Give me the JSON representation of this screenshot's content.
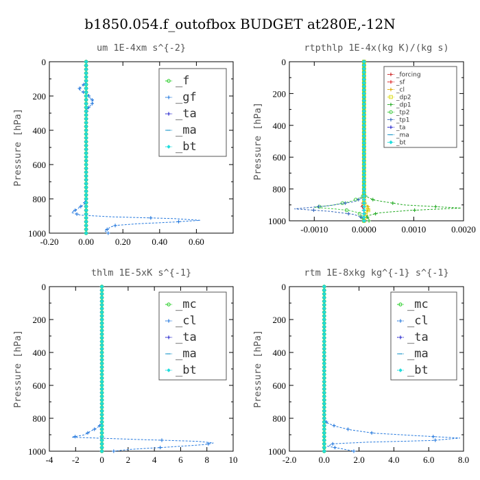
{
  "figure": {
    "title": "b1850.054.f_outofbox  BUDGET at280E,-12N"
  },
  "chart_data": [
    {
      "type": "line",
      "title": "um   1E-4xm  s^{-2}",
      "ylabel": "Pressure [hPa]",
      "xlim": [
        -0.2,
        0.8
      ],
      "ylim": [
        1000,
        0
      ],
      "xticks": [
        -0.2,
        0.0,
        0.2,
        0.4,
        0.6
      ],
      "xtick_labels": [
        "-0.20",
        "0.00",
        "0.20",
        "0.40",
        "0.60"
      ],
      "yticks": [
        0,
        200,
        400,
        600,
        800,
        1000
      ],
      "ytick_labels": [
        "0",
        "200",
        "400",
        "600",
        "800",
        "1000"
      ],
      "legend_position": "top-right",
      "series": [
        {
          "name": "_f",
          "color": "#22cc22",
          "marker": "circle",
          "profile": [
            [
              0,
              0
            ],
            [
              900,
              0
            ],
            [
              1000,
              0
            ]
          ]
        },
        {
          "name": "_gf",
          "color": "#2277dd",
          "marker": "cross",
          "profile": [
            [
              0,
              0
            ],
            [
              120,
              0
            ],
            [
              140,
              -0.02
            ],
            [
              160,
              -0.04
            ],
            [
              175,
              -0.02
            ],
            [
              190,
              0.01
            ],
            [
              210,
              0.02
            ],
            [
              230,
              0.04
            ],
            [
              250,
              0.03
            ],
            [
              270,
              0.01
            ],
            [
              300,
              0
            ],
            [
              800,
              0
            ],
            [
              830,
              -0.01
            ],
            [
              860,
              -0.05
            ],
            [
              880,
              -0.08
            ],
            [
              895,
              -0.03
            ],
            [
              905,
              0.15
            ],
            [
              915,
              0.48
            ],
            [
              925,
              0.62
            ],
            [
              935,
              0.48
            ],
            [
              945,
              0.28
            ],
            [
              955,
              0.16
            ],
            [
              965,
              0.13
            ],
            [
              975,
              0.12
            ],
            [
              985,
              0.1
            ],
            [
              1000,
              0.12
            ]
          ]
        },
        {
          "name": "_ta",
          "color": "#2222cc",
          "marker": "cross",
          "profile": [
            [
              0,
              0
            ],
            [
              1000,
              0
            ]
          ]
        },
        {
          "name": "_ma",
          "color": "#2299cc",
          "marker": "dash",
          "profile": [
            [
              0,
              0
            ],
            [
              1000,
              0
            ]
          ]
        },
        {
          "name": "_bt",
          "color": "#22dddd",
          "marker": "diamond",
          "profile": [
            [
              0,
              0
            ],
            [
              1000,
              0
            ]
          ]
        }
      ]
    },
    {
      "type": "line",
      "title": "rtpthlp  1E-4x(kg K)/(kg s)",
      "ylabel": "Pressure [hPa]",
      "xlim": [
        -0.0015,
        0.002
      ],
      "ylim": [
        1000,
        0
      ],
      "xticks": [
        -0.001,
        0.0,
        0.001,
        0.002
      ],
      "xtick_labels": [
        "-0.0010",
        "0.0000",
        "0.0010",
        "0.0020"
      ],
      "yticks": [
        0,
        200,
        400,
        600,
        800,
        1000
      ],
      "ytick_labels": [
        "0",
        "200",
        "400",
        "600",
        "800",
        "1000"
      ],
      "legend_position": "top-right",
      "series": [
        {
          "name": "_forcing",
          "color": "#cc2222",
          "marker": "cross",
          "profile": [
            [
              0,
              0
            ],
            [
              880,
              0
            ],
            [
              900,
              -5e-05
            ],
            [
              920,
              -2e-05
            ],
            [
              940,
              0
            ],
            [
              1000,
              0
            ]
          ]
        },
        {
          "name": "_sf",
          "color": "#dd2222",
          "marker": "cross",
          "profile": [
            [
              0,
              0
            ],
            [
              1000,
              0
            ]
          ]
        },
        {
          "name": "_cl",
          "color": "#ddaa00",
          "marker": "cross",
          "profile": [
            [
              0,
              0
            ],
            [
              880,
              0
            ],
            [
              910,
              8e-05
            ],
            [
              925,
              0.0001
            ],
            [
              940,
              6e-05
            ],
            [
              960,
              2e-05
            ],
            [
              1000,
              0
            ]
          ]
        },
        {
          "name": "_dp2",
          "color": "#dddd22",
          "marker": "square",
          "profile": [
            [
              0,
              0
            ],
            [
              900,
              0
            ],
            [
              920,
              5e-05
            ],
            [
              935,
              9e-05
            ],
            [
              950,
              4e-05
            ],
            [
              1000,
              0
            ]
          ]
        },
        {
          "name": "_dp1",
          "color": "#22aa22",
          "marker": "cross",
          "profile": [
            [
              0,
              0
            ],
            [
              840,
              0
            ],
            [
              870,
              0.0002
            ],
            [
              900,
              0.0008
            ],
            [
              920,
              0.00195
            ],
            [
              935,
              0.0009
            ],
            [
              950,
              0.0003
            ],
            [
              970,
              5e-05
            ],
            [
              990,
              0.0001
            ],
            [
              1000,
              0.0001
            ]
          ]
        },
        {
          "name": "_tp2",
          "color": "#44cc44",
          "marker": "circle",
          "profile": [
            [
              0,
              0
            ],
            [
              840,
              0
            ],
            [
              860,
              -0.0001
            ],
            [
              880,
              -0.0003
            ],
            [
              900,
              -0.0006
            ],
            [
              915,
              -0.001
            ],
            [
              925,
              -0.0006
            ],
            [
              935,
              -0.0003
            ],
            [
              950,
              -0.0001
            ],
            [
              1000,
              0
            ]
          ]
        },
        {
          "name": "_tp1",
          "color": "#3366bb",
          "marker": "cross",
          "profile": [
            [
              0,
              0
            ],
            [
              850,
              0
            ],
            [
              880,
              -0.0002
            ],
            [
              905,
              -0.0007
            ],
            [
              925,
              -0.0014
            ],
            [
              940,
              -0.0007
            ],
            [
              960,
              -0.0002
            ],
            [
              985,
              0
            ],
            [
              1000,
              0
            ]
          ]
        },
        {
          "name": "_ta",
          "color": "#2222cc",
          "marker": "cross",
          "profile": [
            [
              0,
              0
            ],
            [
              1000,
              0
            ]
          ]
        },
        {
          "name": "_ma",
          "color": "#2299cc",
          "marker": "dash",
          "profile": [
            [
              0,
              0
            ],
            [
              1000,
              0
            ]
          ]
        },
        {
          "name": "_bt",
          "color": "#22dddd",
          "marker": "diamond",
          "profile": [
            [
              0,
              0
            ],
            [
              1000,
              0
            ]
          ]
        }
      ]
    },
    {
      "type": "line",
      "title": "thlm   1E-5xK  s^{-1}",
      "ylabel": "Pressure [hPa]",
      "xlim": [
        -4,
        10
      ],
      "ylim": [
        1000,
        0
      ],
      "xticks": [
        -4,
        -2,
        0,
        2,
        4,
        6,
        8,
        10
      ],
      "xtick_labels": [
        "-4",
        "-2",
        "0",
        "2",
        "4",
        "6",
        "8",
        "10"
      ],
      "yticks": [
        0,
        200,
        400,
        600,
        800,
        1000
      ],
      "ytick_labels": [
        "0",
        "200",
        "400",
        "600",
        "800",
        "1000"
      ],
      "legend_position": "top-right",
      "series": [
        {
          "name": "_mc",
          "color": "#22cc22",
          "marker": "circle",
          "profile": [
            [
              0,
              0
            ],
            [
              1000,
              0
            ]
          ]
        },
        {
          "name": "_cl",
          "color": "#2277dd",
          "marker": "cross",
          "profile": [
            [
              0,
              0
            ],
            [
              820,
              0
            ],
            [
              840,
              -0.1
            ],
            [
              860,
              -0.4
            ],
            [
              880,
              -0.9
            ],
            [
              900,
              -1.3
            ],
            [
              915,
              -2.3
            ],
            [
              930,
              3.2
            ],
            [
              940,
              7.3
            ],
            [
              950,
              8.5
            ],
            [
              960,
              7.8
            ],
            [
              970,
              6.0
            ],
            [
              980,
              4.0
            ],
            [
              990,
              2.0
            ],
            [
              1000,
              0.9
            ]
          ]
        },
        {
          "name": "_ta",
          "color": "#2222cc",
          "marker": "cross",
          "profile": [
            [
              0,
              0
            ],
            [
              1000,
              0
            ]
          ]
        },
        {
          "name": "_ma",
          "color": "#2299cc",
          "marker": "dash",
          "profile": [
            [
              0,
              0
            ],
            [
              1000,
              0
            ]
          ]
        },
        {
          "name": "_bt",
          "color": "#22dddd",
          "marker": "diamond",
          "profile": [
            [
              0,
              0
            ],
            [
              1000,
              0
            ]
          ]
        }
      ]
    },
    {
      "type": "line",
      "title": "rtm   1E-8xkg  kg^{-1}  s^{-1}",
      "ylabel": "Pressure [hPa]",
      "xlim": [
        -2,
        8
      ],
      "ylim": [
        1000,
        0
      ],
      "xticks": [
        -2,
        0,
        2,
        4,
        6,
        8
      ],
      "xtick_labels": [
        "-2.0",
        "0.0",
        "2.0",
        "4.0",
        "6.0",
        "8.0"
      ],
      "yticks": [
        0,
        200,
        400,
        600,
        800,
        1000
      ],
      "ytick_labels": [
        "0",
        "200",
        "400",
        "600",
        "800",
        "1000"
      ],
      "legend_position": "top-right",
      "series": [
        {
          "name": "_mc",
          "color": "#22cc22",
          "marker": "circle",
          "profile": [
            [
              0,
              0
            ],
            [
              1000,
              0
            ]
          ]
        },
        {
          "name": "_cl",
          "color": "#2277dd",
          "marker": "cross",
          "profile": [
            [
              0,
              0
            ],
            [
              810,
              0
            ],
            [
              830,
              0.2
            ],
            [
              850,
              0.7
            ],
            [
              870,
              1.5
            ],
            [
              890,
              2.8
            ],
            [
              905,
              5.2
            ],
            [
              920,
              7.8
            ],
            [
              935,
              6.2
            ],
            [
              945,
              2.5
            ],
            [
              955,
              0.5
            ],
            [
              970,
              0.2
            ],
            [
              985,
              1.0
            ],
            [
              1000,
              1.7
            ]
          ]
        },
        {
          "name": "_ta",
          "color": "#2222cc",
          "marker": "cross",
          "profile": [
            [
              0,
              0
            ],
            [
              1000,
              0
            ]
          ]
        },
        {
          "name": "_ma",
          "color": "#2299cc",
          "marker": "dash",
          "profile": [
            [
              0,
              0
            ],
            [
              1000,
              0
            ]
          ]
        },
        {
          "name": "_bt",
          "color": "#22dddd",
          "marker": "diamond",
          "profile": [
            [
              0,
              0
            ],
            [
              1000,
              0
            ]
          ]
        }
      ]
    }
  ]
}
